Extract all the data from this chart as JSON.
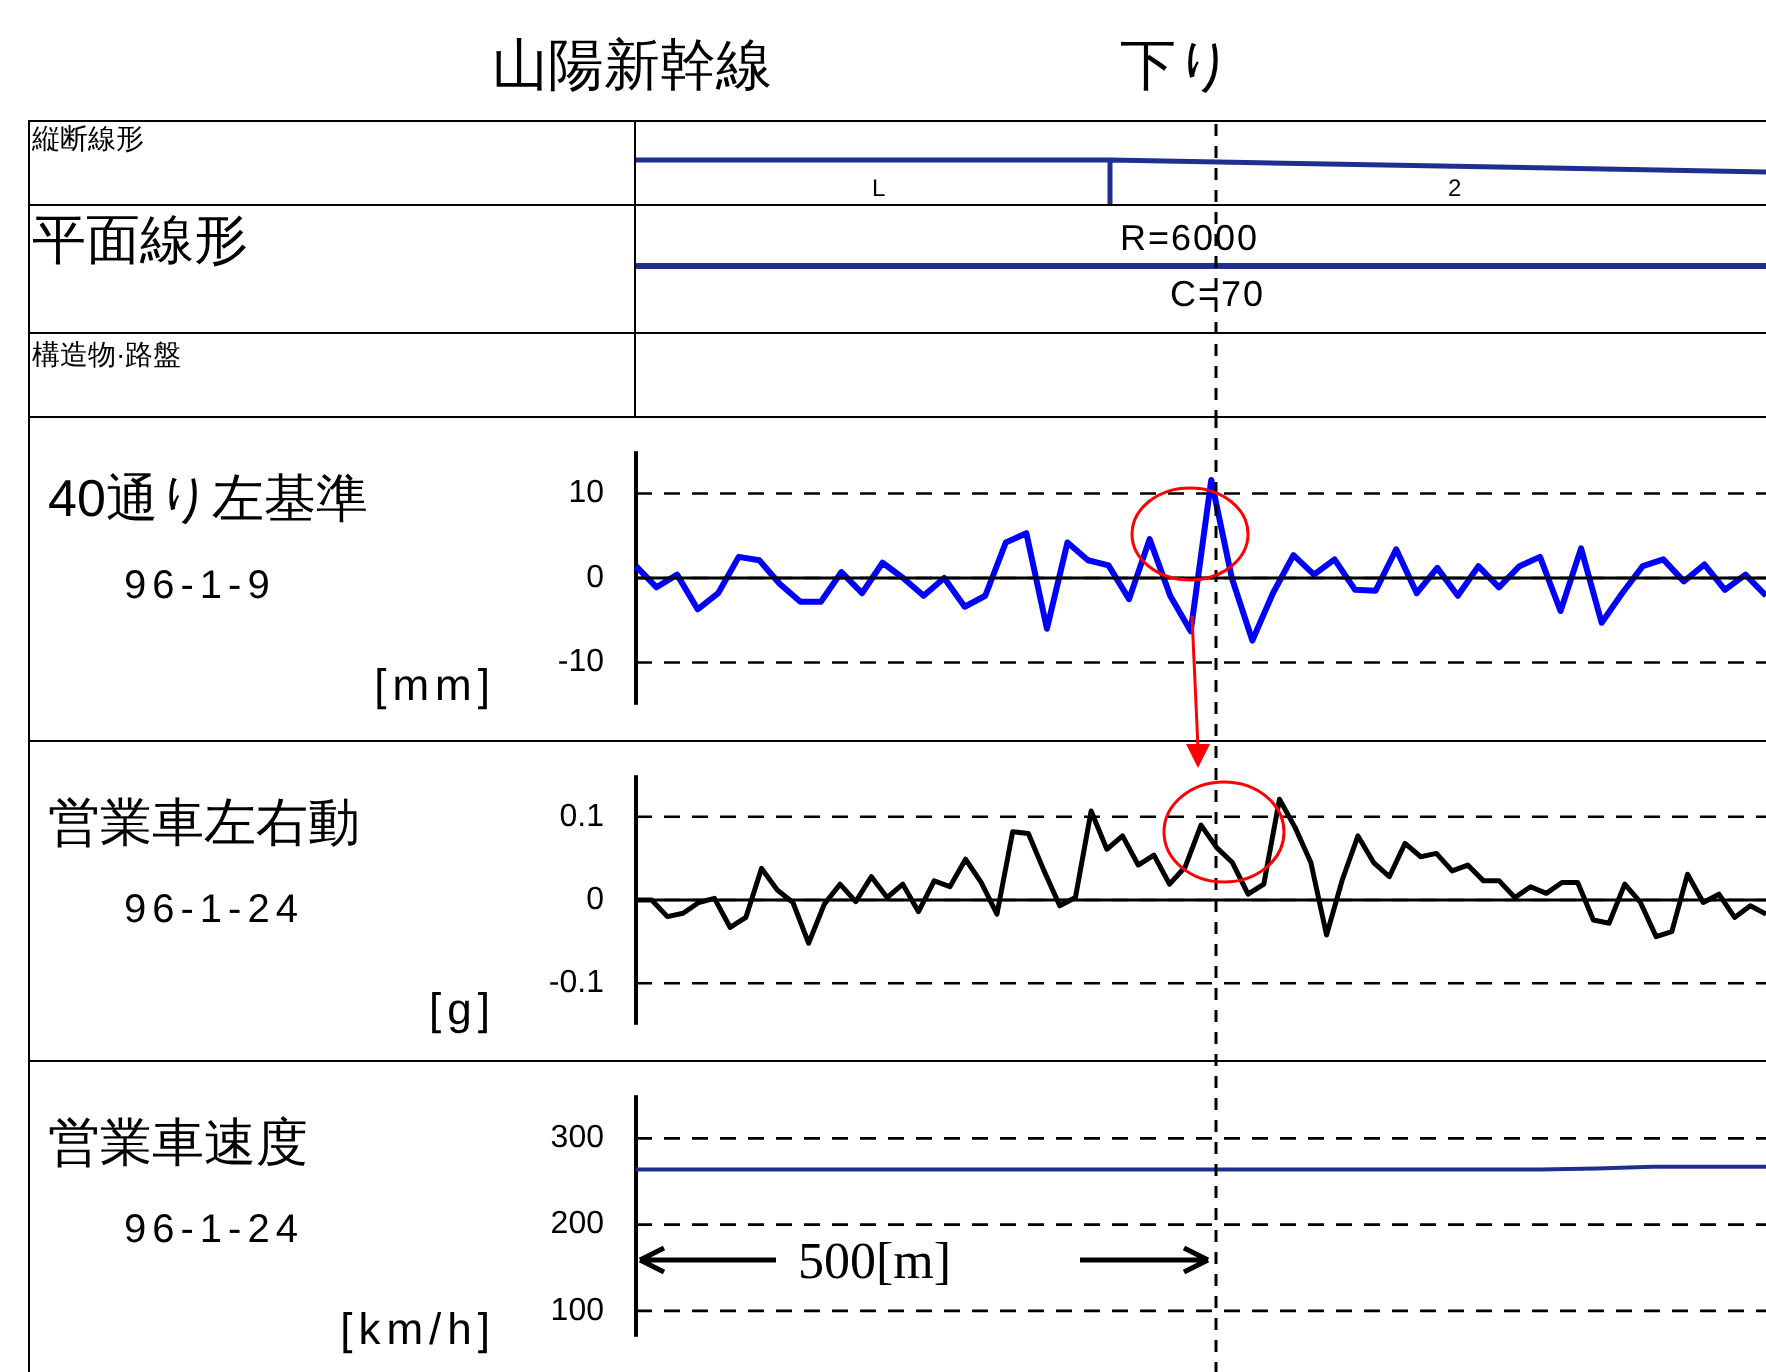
{
  "chart_data": [
    {
      "type": "other",
      "title": "山陽新幹線",
      "subtitle": "下り",
      "annotations": [
        "縦断線形",
        "L",
        "2",
        "平面線形",
        "R=6000",
        "C=70",
        "構造物·路盤"
      ]
    },
    {
      "type": "line",
      "title": "40通り左基準",
      "annotations": [
        "96-1-9"
      ],
      "ylabel": "[mm]",
      "ylim": [
        -15,
        15
      ],
      "yticks": [
        -10,
        0,
        10
      ],
      "grid": "y",
      "tick_labels": "y",
      "marker": "none",
      "categories": [
        null,
        null,
        null,
        null,
        null,
        null,
        null,
        null,
        null,
        null,
        null,
        null,
        null,
        null,
        null,
        null,
        null,
        null,
        null,
        null,
        null,
        null,
        null,
        null,
        null,
        null,
        null,
        null,
        null,
        null,
        null,
        null,
        null,
        null,
        null,
        null,
        null,
        null,
        null,
        null,
        null,
        null,
        null,
        null,
        null,
        null,
        null,
        null,
        null,
        null,
        null,
        null,
        null,
        null,
        null,
        null
      ],
      "ref_lines": [
        {
          "axis": "y",
          "value": 0,
          "color": "#000000",
          "line_style": "solid"
        }
      ],
      "series": [
        {
          "color": "#0000ff",
          "values": [
            1.4,
            -1.1,
            0.4,
            -3.7,
            -1.8,
            2.5,
            2.1,
            -0.7,
            -2.8,
            -2.8,
            0.7,
            -1.8,
            1.8,
            0,
            -2.1,
            0,
            -3.4,
            -2.1,
            4.2,
            5.3,
            -6,
            4.2,
            2.1,
            1.5,
            -2.5,
            4.6,
            -2.1,
            -6.3,
            11.6,
            0,
            -7.4,
            -1.8,
            2.7,
            0.4,
            2.2,
            -1.4,
            -1.5,
            3.4,
            -1.8,
            1.2,
            -2.1,
            1.4,
            -1.1,
            1.4,
            2.5,
            -3.9,
            3.5,
            -5.3,
            -1.8,
            1.4,
            2.2,
            -0.4,
            1.6,
            -1.4,
            0.4,
            -2.1
          ]
        }
      ]
    },
    {
      "type": "line",
      "title": "営業車左右動",
      "annotations": [
        "96-1-24"
      ],
      "ylabel": "[g]",
      "ylim": [
        -0.15,
        0.15
      ],
      "yticks": [
        -0.1,
        0,
        0.1
      ],
      "grid": "y",
      "tick_labels": "y",
      "marker": "none",
      "categories": [
        null,
        null,
        null,
        null,
        null,
        null,
        null,
        null,
        null,
        null,
        null,
        null,
        null,
        null,
        null,
        null,
        null,
        null,
        null,
        null,
        null,
        null,
        null,
        null,
        null,
        null,
        null,
        null,
        null,
        null,
        null,
        null,
        null,
        null,
        null,
        null,
        null,
        null,
        null,
        null,
        null,
        null,
        null,
        null,
        null,
        null,
        null,
        null,
        null,
        null,
        null,
        null,
        null,
        null,
        null,
        null,
        null,
        null,
        null,
        null,
        null,
        null,
        null,
        null,
        null,
        null,
        null,
        null,
        null,
        null,
        null,
        null,
        null
      ],
      "ref_lines": [
        {
          "axis": "y",
          "value": 0,
          "color": "#000000",
          "line_style": "solid"
        }
      ],
      "series": [
        {
          "color": "#000000",
          "values": [
            0,
            0,
            -0.02,
            -0.016,
            -0.003,
            0.002,
            -0.033,
            -0.021,
            0.038,
            0.012,
            -0.003,
            -0.052,
            -0.005,
            0.019,
            -0.002,
            0.028,
            0.003,
            0.019,
            -0.014,
            0.023,
            0.016,
            0.049,
            0.021,
            -0.017,
            0.082,
            0.08,
            0.035,
            -0.007,
            0.003,
            0.107,
            0.061,
            0.077,
            0.042,
            0.054,
            0.019,
            0.04,
            0.09,
            0.063,
            0.045,
            0.007,
            0.019,
            0.121,
            0.087,
            0.045,
            -0.042,
            0.024,
            0.077,
            0.045,
            0.028,
            0.068,
            0.052,
            0.056,
            0.035,
            0.042,
            0.023,
            0.023,
            0.003,
            0.016,
            0.008,
            0.021,
            0.021,
            -0.024,
            -0.028,
            0.019,
            -0.003,
            -0.044,
            -0.038,
            0.031,
            -0.003,
            0.007,
            -0.021,
            -0.007,
            -0.017
          ]
        }
      ]
    },
    {
      "type": "line",
      "title": "営業車速度",
      "ylabel": "[km/h]",
      "ylim": [
        70,
        350
      ],
      "yticks": [
        100,
        200,
        300
      ],
      "grid": "y",
      "tick_labels": "y",
      "marker": "none",
      "annotations": [
        "96-1-24",
        "500[m]"
      ],
      "categories": [
        null,
        null,
        null,
        null,
        null,
        null,
        null,
        null,
        null,
        null,
        null,
        null,
        null,
        null,
        null,
        null,
        null,
        null,
        null,
        null,
        null
      ],
      "series": [
        {
          "color": "#1f2f8f",
          "values": [
            264,
            264,
            264,
            264,
            264,
            264,
            264,
            264,
            264,
            264,
            264,
            264,
            264,
            264,
            264,
            264,
            264,
            265,
            267,
            267,
            267
          ]
        }
      ]
    }
  ]
}
